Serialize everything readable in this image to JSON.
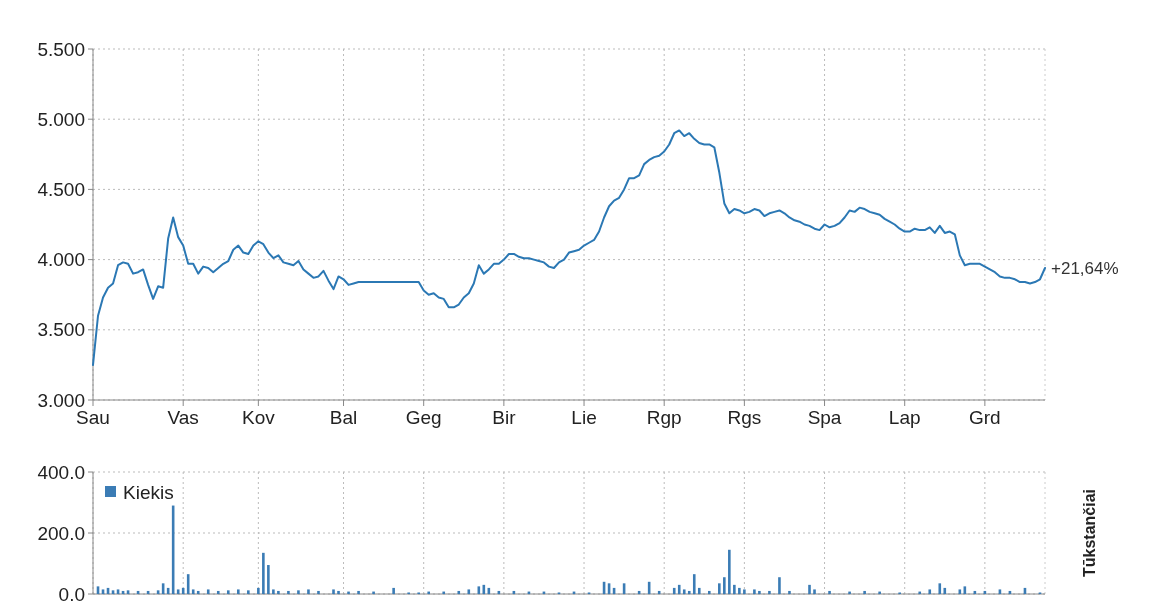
{
  "chart_data": [
    {
      "type": "line",
      "ylim": [
        3,
        5.5
      ],
      "categories": [
        "Sau",
        null,
        null,
        null,
        null,
        null,
        null,
        null,
        null,
        null,
        null,
        null,
        null,
        null,
        null,
        null,
        null,
        null,
        "Vas",
        null,
        null,
        null,
        null,
        null,
        null,
        null,
        null,
        null,
        null,
        null,
        null,
        null,
        null,
        "Kov",
        null,
        null,
        null,
        null,
        null,
        null,
        null,
        null,
        null,
        null,
        null,
        null,
        null,
        null,
        null,
        null,
        "Bal",
        null,
        null,
        null,
        null,
        null,
        null,
        null,
        null,
        null,
        null,
        null,
        null,
        null,
        null,
        null,
        "Geg",
        null,
        null,
        null,
        null,
        null,
        null,
        null,
        null,
        null,
        null,
        null,
        null,
        null,
        null,
        null,
        "Bir",
        null,
        null,
        null,
        null,
        null,
        null,
        null,
        null,
        null,
        null,
        null,
        null,
        null,
        null,
        null,
        "Lie",
        null,
        null,
        null,
        null,
        null,
        null,
        null,
        null,
        null,
        null,
        null,
        null,
        null,
        null,
        null,
        "Rgp",
        null,
        null,
        null,
        null,
        null,
        null,
        null,
        null,
        null,
        null,
        null,
        null,
        null,
        null,
        null,
        "Rgs",
        null,
        null,
        null,
        null,
        null,
        null,
        null,
        null,
        null,
        null,
        null,
        null,
        null,
        null,
        null,
        "Spa",
        null,
        null,
        null,
        null,
        null,
        null,
        null,
        null,
        null,
        null,
        null,
        null,
        null,
        null,
        null,
        "Lap",
        null,
        null,
        null,
        null,
        null,
        null,
        null,
        null,
        null,
        null,
        null,
        null,
        null,
        null,
        null,
        "Grd",
        null,
        null,
        null,
        null,
        null,
        null,
        null,
        null,
        null,
        null,
        null,
        null
      ],
      "yticks": [
        {
          "value": 3,
          "label": "3.000"
        },
        {
          "value": 3.5,
          "label": "3.500"
        },
        {
          "value": 4,
          "label": "4.000"
        },
        {
          "value": 4.5,
          "label": "4.500"
        },
        {
          "value": 5,
          "label": "5.000"
        },
        {
          "value": 5.5,
          "label": "5.500"
        }
      ],
      "grid": true,
      "marker": "none",
      "line_style": "solid",
      "annotations": [
        "+21,64%"
      ],
      "series": [
        {
          "color": "#2b78b4",
          "values": [
            3.25,
            3.6,
            3.73,
            3.8,
            3.83,
            3.96,
            3.98,
            3.97,
            3.9,
            3.91,
            3.93,
            3.82,
            3.72,
            3.81,
            3.8,
            4.15,
            4.3,
            4.16,
            4.1,
            3.97,
            3.97,
            3.9,
            3.95,
            3.94,
            3.91,
            3.94,
            3.97,
            3.99,
            4.07,
            4.1,
            4.05,
            4.04,
            4.1,
            4.13,
            4.11,
            4.05,
            4.01,
            4.03,
            3.98,
            3.97,
            3.96,
            3.99,
            3.93,
            3.9,
            3.87,
            3.88,
            3.92,
            3.85,
            3.79,
            3.88,
            3.86,
            3.82,
            3.83,
            3.84,
            3.84,
            3.84,
            3.84,
            3.84,
            3.84,
            3.84,
            3.84,
            3.84,
            3.84,
            3.84,
            3.84,
            3.84,
            3.78,
            3.75,
            3.76,
            3.73,
            3.72,
            3.66,
            3.66,
            3.68,
            3.73,
            3.76,
            3.83,
            3.96,
            3.9,
            3.93,
            3.97,
            3.97,
            4.0,
            4.04,
            4.04,
            4.02,
            4.01,
            4.01,
            4.0,
            3.99,
            3.98,
            3.95,
            3.94,
            3.98,
            4.0,
            4.05,
            4.06,
            4.07,
            4.1,
            4.12,
            4.14,
            4.2,
            4.3,
            4.38,
            4.42,
            4.44,
            4.5,
            4.58,
            4.58,
            4.6,
            4.68,
            4.71,
            4.73,
            4.74,
            4.77,
            4.82,
            4.9,
            4.92,
            4.88,
            4.9,
            4.86,
            4.83,
            4.82,
            4.82,
            4.8,
            4.62,
            4.4,
            4.33,
            4.36,
            4.35,
            4.33,
            4.34,
            4.36,
            4.35,
            4.31,
            4.33,
            4.34,
            4.35,
            4.33,
            4.3,
            4.28,
            4.27,
            4.25,
            4.24,
            4.22,
            4.21,
            4.25,
            4.23,
            4.24,
            4.26,
            4.3,
            4.35,
            4.34,
            4.37,
            4.36,
            4.34,
            4.33,
            4.32,
            4.29,
            4.27,
            4.25,
            4.22,
            4.2,
            4.2,
            4.22,
            4.21,
            4.21,
            4.23,
            4.19,
            4.24,
            4.19,
            4.2,
            4.18,
            4.03,
            3.96,
            3.97,
            3.97,
            3.97,
            3.95,
            3.93,
            3.91,
            3.88,
            3.87,
            3.87,
            3.86,
            3.84,
            3.84,
            3.83,
            3.84,
            3.86,
            3.94
          ]
        }
      ]
    },
    {
      "type": "bar",
      "ylim": [
        0,
        400
      ],
      "categories": [
        null,
        null,
        null,
        null,
        null,
        null,
        null,
        null,
        null,
        null,
        null,
        null,
        null,
        null,
        null,
        null,
        null,
        null,
        null,
        null,
        null,
        null,
        null,
        null,
        null,
        null,
        null,
        null,
        null,
        null,
        null,
        null,
        null,
        null,
        null,
        null,
        null,
        null,
        null,
        null,
        null,
        null,
        null,
        null,
        null,
        null,
        null,
        null,
        null,
        null,
        null,
        null,
        null,
        null,
        null,
        null,
        null,
        null,
        null,
        null,
        null,
        null,
        null,
        null,
        null,
        null,
        null,
        null,
        null,
        null,
        null,
        null,
        null,
        null,
        null,
        null,
        null,
        null,
        null,
        null,
        null,
        null,
        null,
        null,
        null,
        null,
        null,
        null,
        null,
        null,
        null,
        null,
        null,
        null,
        null,
        null,
        null,
        null,
        null,
        null,
        null,
        null,
        null,
        null,
        null,
        null,
        null,
        null,
        null,
        null,
        null,
        null,
        null,
        null,
        null,
        null,
        null,
        null,
        null,
        null,
        null,
        null,
        null,
        null,
        null,
        null,
        null,
        null,
        null,
        null,
        null,
        null,
        null,
        null,
        null,
        null,
        null,
        null,
        null,
        null,
        null,
        null,
        null,
        null,
        null,
        null,
        null,
        null,
        null,
        null,
        null,
        null,
        null,
        null,
        null,
        null,
        null,
        null,
        null,
        null,
        null,
        null,
        null,
        null,
        null,
        null,
        null,
        null,
        null,
        null,
        null,
        null,
        null,
        null,
        null,
        null,
        null,
        null,
        null,
        null,
        null,
        null,
        null,
        null,
        null,
        null,
        null,
        null,
        null,
        null,
        null
      ],
      "yticks": [
        {
          "value": 0,
          "label": "0.0"
        },
        {
          "value": 200,
          "label": "200.0"
        },
        {
          "value": 400,
          "label": "400.0"
        }
      ],
      "tick_labels": "y",
      "grid": true,
      "ylabel": "Tūkstančiai",
      "legend": "top left",
      "series": [
        {
          "name": "Kiekis",
          "color": "#3b7cb5",
          "values": [
            null,
            25,
            15,
            20,
            12,
            15,
            10,
            12,
            null,
            10,
            null,
            10,
            null,
            12,
            35,
            20,
            290,
            15,
            20,
            65,
            15,
            10,
            null,
            15,
            null,
            10,
            null,
            12,
            null,
            15,
            null,
            12,
            null,
            20,
            135,
            95,
            15,
            10,
            null,
            10,
            null,
            12,
            null,
            15,
            null,
            10,
            null,
            null,
            15,
            10,
            null,
            8,
            null,
            10,
            null,
            null,
            8,
            null,
            null,
            null,
            20,
            null,
            null,
            5,
            null,
            5,
            null,
            8,
            null,
            null,
            8,
            null,
            null,
            10,
            null,
            15,
            null,
            25,
            30,
            20,
            null,
            10,
            null,
            null,
            10,
            null,
            null,
            8,
            null,
            null,
            8,
            null,
            null,
            5,
            null,
            null,
            8,
            null,
            null,
            5,
            null,
            null,
            40,
            35,
            20,
            null,
            35,
            null,
            null,
            10,
            null,
            40,
            null,
            10,
            null,
            null,
            20,
            30,
            15,
            10,
            65,
            20,
            null,
            10,
            null,
            35,
            55,
            145,
            30,
            20,
            15,
            null,
            15,
            10,
            null,
            10,
            null,
            55,
            null,
            10,
            null,
            null,
            null,
            30,
            15,
            null,
            null,
            10,
            null,
            null,
            null,
            8,
            null,
            null,
            10,
            null,
            null,
            8,
            null,
            null,
            null,
            5,
            null,
            null,
            null,
            8,
            null,
            15,
            null,
            35,
            20,
            null,
            null,
            15,
            25,
            null,
            10,
            null,
            10,
            null,
            null,
            15,
            null,
            10,
            null,
            null,
            20,
            null,
            null,
            5,
            null
          ]
        }
      ]
    }
  ]
}
